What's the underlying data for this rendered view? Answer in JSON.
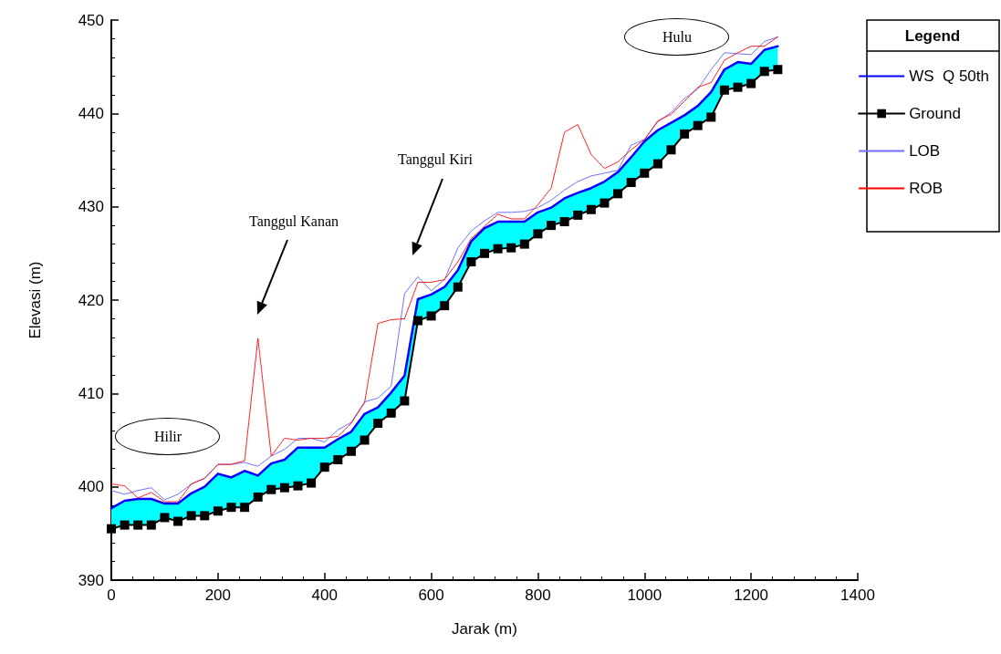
{
  "chart_data": {
    "type": "line",
    "xlabel": "Jarak (m)",
    "ylabel": "Elevasi (m)",
    "legend_title": "Legend",
    "legend": "top right",
    "grid": false,
    "xlim": [
      0,
      1400
    ],
    "xticks": [
      0,
      200,
      400,
      600,
      800,
      1000,
      1200,
      1400
    ],
    "ylim": [
      390,
      450
    ],
    "yticks": [
      390,
      400,
      410,
      420,
      430,
      440,
      450
    ],
    "x": [
      0,
      25,
      50,
      75,
      100,
      125,
      150,
      175,
      200,
      225,
      250,
      275,
      300,
      325,
      350,
      375,
      400,
      425,
      450,
      475,
      500,
      525,
      550,
      575,
      600,
      625,
      650,
      675,
      700,
      725,
      750,
      775,
      800,
      825,
      850,
      875,
      900,
      925,
      950,
      975,
      1000,
      1025,
      1050,
      1075,
      1100,
      1125,
      1150,
      1175,
      1200,
      1225,
      1250
    ],
    "series": [
      {
        "name": "WS  Q 50th",
        "color": "#0000ff",
        "marker": "none",
        "line_style": "solid",
        "values": [
          397.7,
          398.5,
          398.7,
          398.7,
          398.2,
          398.2,
          399.3,
          400.0,
          401.4,
          401.0,
          401.7,
          401.2,
          402.5,
          402.9,
          404.2,
          404.2,
          404.2,
          405.1,
          405.9,
          407.8,
          408.5,
          410.1,
          411.9,
          420.1,
          420.6,
          421.4,
          423.2,
          426.3,
          427.7,
          428.4,
          428.4,
          428.4,
          429.4,
          429.9,
          430.9,
          431.5,
          432.0,
          432.7,
          433.7,
          435.3,
          437.0,
          438.2,
          439.0,
          439.8,
          440.8,
          442.3,
          444.7,
          445.5,
          445.3,
          446.8,
          447.2
        ],
        "lower": [
          395.5,
          395.9,
          395.9,
          395.9,
          396.7,
          396.3,
          396.9,
          396.9,
          397.4,
          397.8,
          397.8,
          398.9,
          399.7,
          399.9,
          400.1,
          400.4,
          402.1,
          402.9,
          403.8,
          405.0,
          406.8,
          407.9,
          409.2,
          417.8,
          418.3,
          419.4,
          421.4,
          424.1,
          425.0,
          425.5,
          425.6,
          426.0,
          427.1,
          428.0,
          428.4,
          429.1,
          429.7,
          430.4,
          431.4,
          432.6,
          433.6,
          434.6,
          436.1,
          437.8,
          438.7,
          439.6,
          442.5,
          442.8,
          443.2,
          444.5,
          444.7
        ],
        "upper": [
          397.7,
          398.5,
          398.7,
          398.7,
          398.2,
          398.2,
          399.3,
          400.0,
          401.4,
          401.0,
          401.7,
          401.2,
          402.5,
          402.9,
          404.2,
          404.2,
          404.2,
          405.1,
          405.9,
          407.8,
          408.5,
          410.1,
          411.9,
          420.1,
          420.6,
          421.4,
          423.2,
          426.3,
          427.7,
          428.4,
          428.4,
          428.4,
          429.4,
          429.9,
          430.9,
          431.5,
          432.0,
          432.7,
          433.7,
          435.3,
          437.0,
          438.2,
          439.0,
          439.8,
          440.8,
          442.3,
          444.7,
          445.5,
          445.3,
          446.8,
          447.2
        ]
      },
      {
        "name": "Ground",
        "color": "#000000",
        "marker": "square",
        "line_style": "solid",
        "values": [
          395.5,
          395.9,
          395.9,
          395.9,
          396.7,
          396.3,
          396.9,
          396.9,
          397.4,
          397.8,
          397.8,
          398.9,
          399.7,
          399.9,
          400.1,
          400.4,
          402.1,
          402.9,
          403.8,
          405.0,
          406.8,
          407.9,
          409.2,
          417.8,
          418.3,
          419.4,
          421.4,
          424.1,
          425.0,
          425.5,
          425.6,
          426.0,
          427.1,
          428.0,
          428.4,
          429.1,
          429.7,
          430.4,
          431.4,
          432.6,
          433.6,
          434.6,
          436.1,
          437.8,
          438.7,
          439.6,
          442.5,
          442.8,
          443.2,
          444.5,
          444.7
        ]
      },
      {
        "name": "LOB",
        "color": "#7070ff",
        "marker": "none",
        "line_style": "solid",
        "values": [
          399.6,
          399.2,
          399.6,
          399.9,
          398.6,
          399.2,
          400.3,
          400.9,
          402.4,
          402.4,
          402.6,
          402.2,
          403.3,
          404.0,
          405.2,
          405.2,
          404.8,
          406.1,
          406.9,
          409.1,
          409.5,
          410.8,
          420.7,
          422.5,
          421.0,
          422.2,
          425.6,
          427.4,
          428.5,
          429.4,
          429.4,
          429.5,
          429.9,
          430.7,
          431.8,
          432.7,
          433.3,
          433.6,
          433.9,
          436.6,
          437.2,
          439.1,
          440.1,
          441.6,
          442.6,
          444.7,
          446.5,
          446.4,
          446.3,
          447.7,
          448.2
        ]
      },
      {
        "name": "ROB",
        "color": "#ff0000",
        "marker": "none",
        "line_style": "dotted",
        "values": [
          400.3,
          400.1,
          398.8,
          399.4,
          398.4,
          398.4,
          400.3,
          400.9,
          402.4,
          402.4,
          402.8,
          415.9,
          403.3,
          405.2,
          405.0,
          405.2,
          405.2,
          405.4,
          406.8,
          409.0,
          417.5,
          417.9,
          418.0,
          421.9,
          421.9,
          422.2,
          424.1,
          426.6,
          427.9,
          429.2,
          428.7,
          428.7,
          430.2,
          432.0,
          438.0,
          438.8,
          435.6,
          434.1,
          434.8,
          436.1,
          437.2,
          439.2,
          439.9,
          441.3,
          442.8,
          443.3,
          445.7,
          446.5,
          447.2,
          447.2,
          448.2
        ]
      }
    ],
    "annotations": [
      "Hilir",
      "Hulu",
      "Tanggul Kanan",
      "Tanggul Kiri"
    ]
  }
}
